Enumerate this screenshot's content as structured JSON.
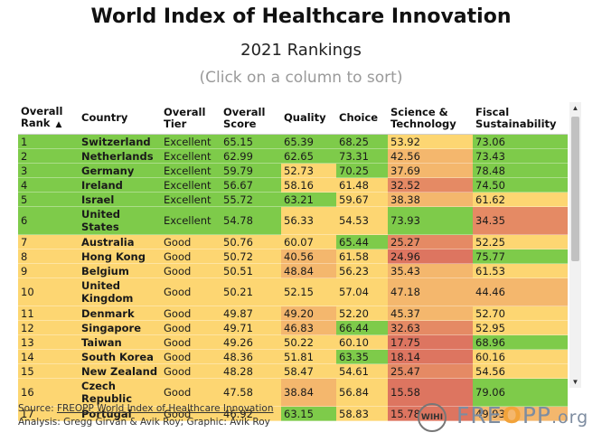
{
  "header": {
    "title": "World Index of Healthcare Innovation",
    "subtitle": "2021 Rankings",
    "hint": "(Click on a column to sort)"
  },
  "table": {
    "columns": [
      {
        "label": "Overall Rank",
        "sorted": true,
        "sort_icon": "triangle-up"
      },
      {
        "label": "Country"
      },
      {
        "label": "Overall Tier"
      },
      {
        "label": "Overall Score"
      },
      {
        "label": "Quality"
      },
      {
        "label": "Choice"
      },
      {
        "label": "Science & Technology"
      },
      {
        "label": "Fiscal Sustainability"
      }
    ],
    "rows": [
      {
        "rank": "1",
        "country": "Switzerland",
        "tier": "Excellent",
        "score": "65.15",
        "quality": "65.39",
        "choice": "68.25",
        "science": "53.92",
        "fiscal": "73.06"
      },
      {
        "rank": "2",
        "country": "Netherlands",
        "tier": "Excellent",
        "score": "62.99",
        "quality": "62.65",
        "choice": "73.31",
        "science": "42.56",
        "fiscal": "73.43"
      },
      {
        "rank": "3",
        "country": "Germany",
        "tier": "Excellent",
        "score": "59.79",
        "quality": "52.73",
        "choice": "70.25",
        "science": "37.69",
        "fiscal": "78.48"
      },
      {
        "rank": "4",
        "country": "Ireland",
        "tier": "Excellent",
        "score": "56.67",
        "quality": "58.16",
        "choice": "61.48",
        "science": "32.52",
        "fiscal": "74.50"
      },
      {
        "rank": "5",
        "country": "Israel",
        "tier": "Excellent",
        "score": "55.72",
        "quality": "63.21",
        "choice": "59.67",
        "science": "38.38",
        "fiscal": "61.62"
      },
      {
        "rank": "6",
        "country": "United States",
        "tier": "Excellent",
        "score": "54.78",
        "quality": "56.33",
        "choice": "54.53",
        "science": "73.93",
        "fiscal": "34.35"
      },
      {
        "rank": "7",
        "country": "Australia",
        "tier": "Good",
        "score": "50.76",
        "quality": "60.07",
        "choice": "65.44",
        "science": "25.27",
        "fiscal": "52.25"
      },
      {
        "rank": "8",
        "country": "Hong Kong",
        "tier": "Good",
        "score": "50.72",
        "quality": "40.56",
        "choice": "61.58",
        "science": "24.96",
        "fiscal": "75.77"
      },
      {
        "rank": "9",
        "country": "Belgium",
        "tier": "Good",
        "score": "50.51",
        "quality": "48.84",
        "choice": "56.23",
        "science": "35.43",
        "fiscal": "61.53"
      },
      {
        "rank": "10",
        "country": "United Kingdom",
        "tier": "Good",
        "score": "50.21",
        "quality": "52.15",
        "choice": "57.04",
        "science": "47.18",
        "fiscal": "44.46"
      },
      {
        "rank": "11",
        "country": "Denmark",
        "tier": "Good",
        "score": "49.87",
        "quality": "49.20",
        "choice": "52.20",
        "science": "45.37",
        "fiscal": "52.70"
      },
      {
        "rank": "12",
        "country": "Singapore",
        "tier": "Good",
        "score": "49.71",
        "quality": "46.83",
        "choice": "66.44",
        "science": "32.63",
        "fiscal": "52.95"
      },
      {
        "rank": "13",
        "country": "Taiwan",
        "tier": "Good",
        "score": "49.26",
        "quality": "50.22",
        "choice": "60.10",
        "science": "17.75",
        "fiscal": "68.96"
      },
      {
        "rank": "14",
        "country": "South Korea",
        "tier": "Good",
        "score": "48.36",
        "quality": "51.81",
        "choice": "63.35",
        "science": "18.14",
        "fiscal": "60.16"
      },
      {
        "rank": "15",
        "country": "New Zealand",
        "tier": "Good",
        "score": "48.28",
        "quality": "58.47",
        "choice": "54.61",
        "science": "25.47",
        "fiscal": "54.56"
      },
      {
        "rank": "16",
        "country": "Czech Republic",
        "tier": "Good",
        "score": "47.58",
        "quality": "38.84",
        "choice": "56.84",
        "science": "15.58",
        "fiscal": "79.06"
      },
      {
        "rank": "17",
        "country": "Portugal",
        "tier": "Good",
        "score": "46.92",
        "quality": "63.15",
        "choice": "58.83",
        "science": "15.78",
        "fiscal": "49.93"
      }
    ]
  },
  "colors": {
    "excellent_row": "#7ecb4a",
    "good_row": "#fdd672",
    "high": "#7ecb4a",
    "mid": "#fdd672",
    "low_mid": "#f4b76d",
    "low": "#e58a64",
    "lowest": "#dd7560"
  },
  "scrollbar": {
    "up_icon": "triangle-up",
    "down_icon": "triangle-down"
  },
  "footer": {
    "source_prefix": "Source: ",
    "source_link": "FREOPP World Index of Healthcare Innovation",
    "analysis": "Analysis: Gregg Girvan & Avik Roy; Graphic: Avik Roy",
    "badge": "WIHI",
    "brand_pre": "FRE",
    "brand_o": "O",
    "brand_post": "PP",
    "brand_org": ".org"
  }
}
